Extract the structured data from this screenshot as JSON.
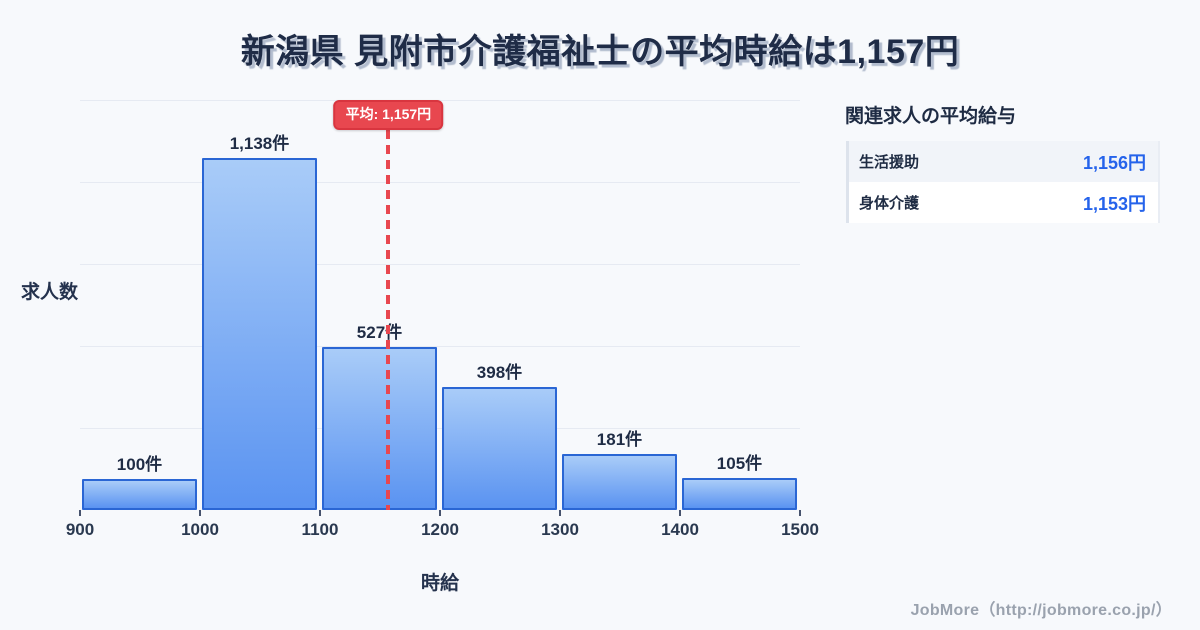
{
  "title": "新潟県 見附市介護福祉士の平均時給は1,157円",
  "chart_data": {
    "type": "bar",
    "title": "新潟県 見附市介護福祉士の平均時給は1,157円",
    "xlabel": "時給",
    "ylabel": "求人数",
    "bins": [
      900,
      1000,
      1100,
      1200,
      1300,
      1400,
      1500
    ],
    "categories": [
      "900-1000",
      "1000-1100",
      "1100-1200",
      "1200-1300",
      "1300-1400",
      "1400-1500"
    ],
    "values": [
      100,
      1138,
      527,
      398,
      181,
      105
    ],
    "bar_labels": [
      "100件",
      "1,138件",
      "527件",
      "398件",
      "181件",
      "105件"
    ],
    "x_ticks": [
      "900",
      "1000",
      "1100",
      "1200",
      "1300",
      "1400",
      "1500"
    ],
    "xlim": [
      900,
      1500
    ],
    "grid": true,
    "gridline_count": 5,
    "average": {
      "value": 1157,
      "label": "平均: 1,157円"
    },
    "colors": {
      "bar_top": "#a9ccf8",
      "bar_bottom": "#5a93f1",
      "bar_border": "#2a66d4",
      "average_line": "#e8474f",
      "background": "#f7f9fc"
    }
  },
  "side_panel": {
    "heading": "関連求人の平均給与",
    "rows": [
      {
        "label": "生活援助",
        "value": "1,156円"
      },
      {
        "label": "身体介護",
        "value": "1,153円"
      }
    ]
  },
  "footer": {
    "credit": "JobMore（http://jobmore.co.jp/）"
  }
}
